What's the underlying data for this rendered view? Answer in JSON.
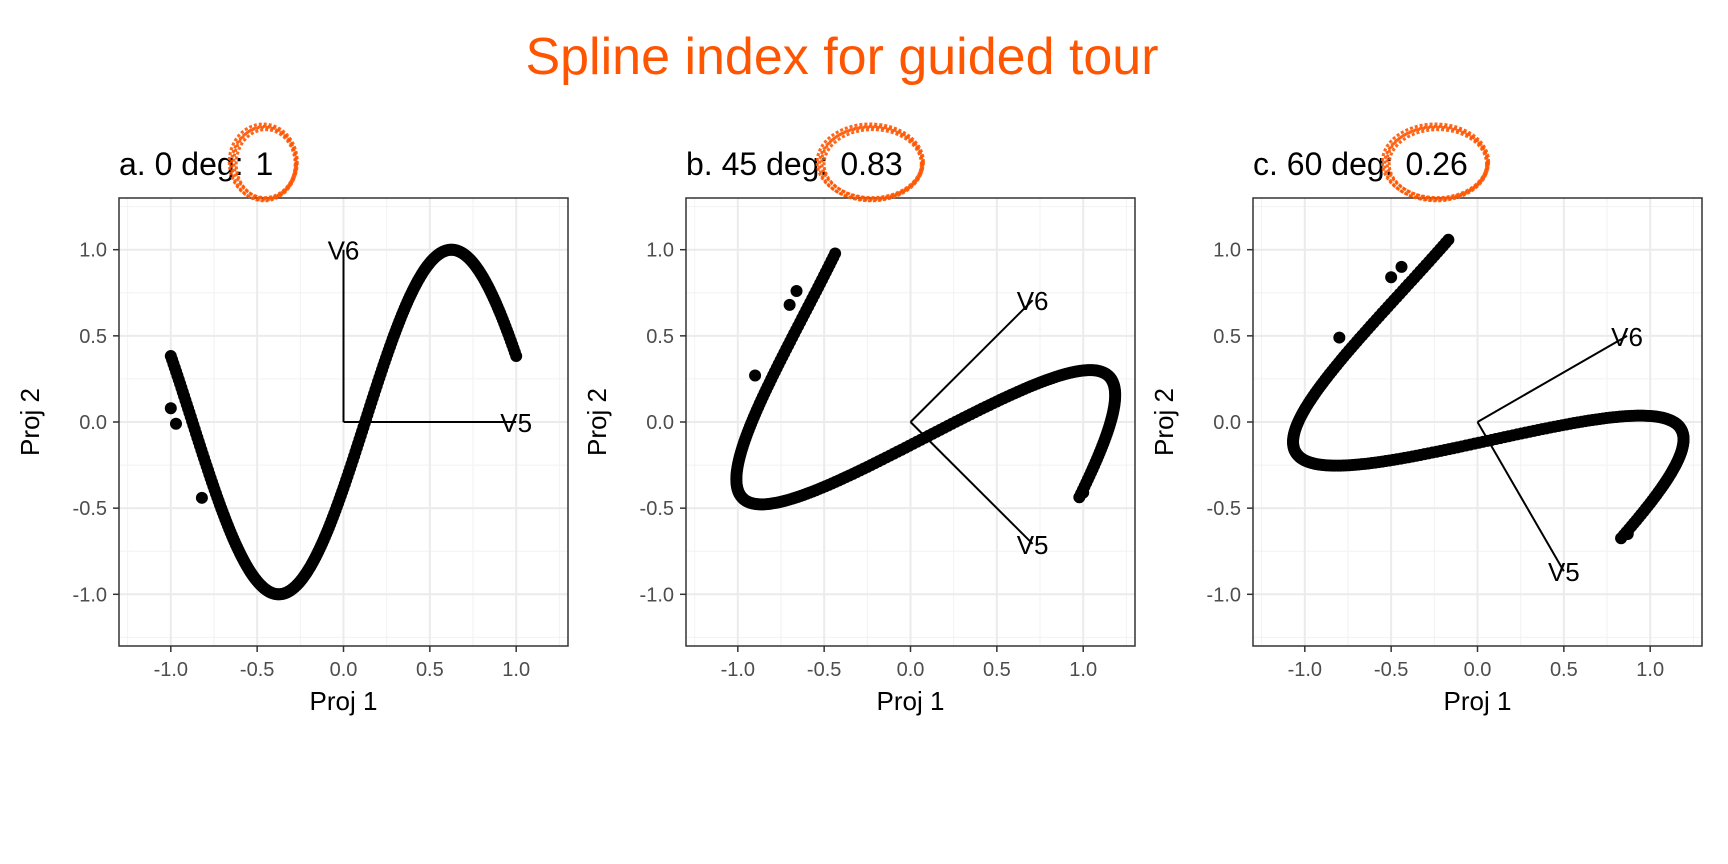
{
  "title": "Spline index for guided tour",
  "accent_color": "#FF5500",
  "chart_data": [
    {
      "type": "scatter",
      "title_prefix": "a. 0 deg:",
      "index_value": "1",
      "xlabel": "Proj 1",
      "ylabel": "Proj 2",
      "xlim": [
        -1.3,
        1.3
      ],
      "ylim": [
        -1.3,
        1.3
      ],
      "xticks": [
        -1.0,
        -0.5,
        0.0,
        0.5,
        1.0
      ],
      "yticks": [
        -1.0,
        -0.5,
        0.0,
        0.5,
        1.0
      ],
      "tick_labels": [
        "-1.0",
        "-0.5",
        "0.0",
        "0.5",
        "1.0"
      ],
      "grid": true,
      "axes": [
        {
          "label": "V5",
          "x": 1.0,
          "y": 0.0
        },
        {
          "label": "V6",
          "x": 0.0,
          "y": 1.0
        }
      ],
      "curve": {
        "shape": "sine",
        "t_range": [
          -1.0,
          1.0
        ],
        "x_shift": 0.0
      }
    },
    {
      "type": "scatter",
      "title_prefix": "b. 45 deg:",
      "index_value": "0.83",
      "xlabel": "Proj 1",
      "ylabel": "Proj 2",
      "xlim": [
        -1.3,
        1.3
      ],
      "ylim": [
        -1.3,
        1.3
      ],
      "xticks": [
        -1.0,
        -0.5,
        0.0,
        0.5,
        1.0
      ],
      "yticks": [
        -1.0,
        -0.5,
        0.0,
        0.5,
        1.0
      ],
      "tick_labels": [
        "-1.0",
        "-0.5",
        "0.0",
        "0.5",
        "1.0"
      ],
      "grid": true,
      "axes": [
        {
          "label": "V5",
          "x": 0.7071,
          "y": -0.7071
        },
        {
          "label": "V6",
          "x": 0.7071,
          "y": 0.7071
        }
      ],
      "curve": {
        "shape": "rotated-sine",
        "v5": [
          0.7071,
          -0.7071
        ],
        "v6": [
          0.7071,
          0.7071
        ],
        "t_range": [
          -1.0,
          1.0
        ],
        "x_shift": 0.0
      }
    },
    {
      "type": "scatter",
      "title_prefix": "c. 60 deg:",
      "index_value": "0.26",
      "xlabel": "Proj 1",
      "ylabel": "Proj 2",
      "xlim": [
        -1.3,
        1.3
      ],
      "ylim": [
        -1.3,
        1.3
      ],
      "xticks": [
        -1.0,
        -0.5,
        0.0,
        0.5,
        1.0
      ],
      "yticks": [
        -1.0,
        -0.5,
        0.0,
        0.5,
        1.0
      ],
      "tick_labels": [
        "-1.0",
        "-0.5",
        "0.0",
        "0.5",
        "1.0"
      ],
      "grid": true,
      "axes": [
        {
          "label": "V5",
          "x": 0.5,
          "y": -0.866
        },
        {
          "label": "V6",
          "x": 0.866,
          "y": 0.5
        }
      ],
      "curve": {
        "shape": "rotated-sine",
        "v5": [
          0.5,
          -0.866
        ],
        "v6": [
          0.866,
          0.5
        ],
        "t_range": [
          -1.0,
          1.0
        ],
        "x_shift": 0.0
      }
    }
  ]
}
